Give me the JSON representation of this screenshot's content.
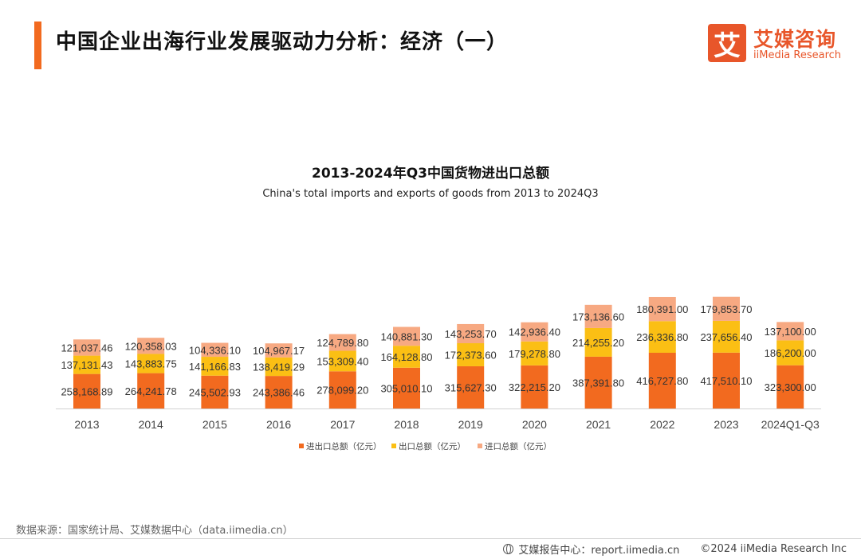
{
  "header": {
    "title": "中国企业出海行业发展驱动力分析：经济（一）"
  },
  "logo": {
    "mark": "艾",
    "name_cn": "艾媒咨询",
    "name_en": "iiMedia Research"
  },
  "chart_data": {
    "type": "bar",
    "stacked": true,
    "title": "2013-2024年Q3中国货物进出口总额",
    "subtitle": "China's total imports and exports of goods from 2013 to 2024Q3",
    "categories": [
      "2013",
      "2014",
      "2015",
      "2016",
      "2017",
      "2018",
      "2019",
      "2020",
      "2021",
      "2022",
      "2023",
      "2024Q1-Q3"
    ],
    "series": [
      {
        "name": "进出口总额（亿元）",
        "color": "#f26a1f",
        "values": [
          258168.89,
          264241.78,
          245502.93,
          243386.46,
          278099.2,
          305010.1,
          315627.3,
          322215.2,
          387391.8,
          416727.8,
          417510.1,
          323300.0
        ],
        "labels": [
          "258,168.89",
          "264,241.78",
          "245,502.93",
          "243,386.46",
          "278,099.20",
          "305,010.10",
          "315,627.30",
          "322,215.20",
          "387,391.80",
          "416,727.80",
          "417,510.10",
          "323,300.00"
        ]
      },
      {
        "name": "出口总额（亿元）",
        "color": "#fbbf14",
        "values": [
          137131.43,
          143883.75,
          141166.83,
          138419.29,
          153309.4,
          164128.8,
          172373.6,
          179278.8,
          214255.2,
          236336.8,
          237656.4,
          186200.0
        ],
        "labels": [
          "137,131.43",
          "143,883.75",
          "141,166.83",
          "138,419.29",
          "153,309.40",
          "164,128.80",
          "172,373.60",
          "179,278.80",
          "214,255.20",
          "236,336.80",
          "237,656.40",
          "186,200.00"
        ]
      },
      {
        "name": "进口总额（亿元）",
        "color": "#f7a982",
        "values": [
          121037.46,
          120358.03,
          104336.1,
          104967.17,
          124789.8,
          140881.3,
          143253.7,
          142936.4,
          173136.6,
          180391.0,
          179853.7,
          137100.0
        ],
        "labels": [
          "121,037.46",
          "120,358.03",
          "104,336.10",
          "104,967.17",
          "124,789.80",
          "140,881.30",
          "143,253.70",
          "142,936.40",
          "173,136.60",
          "180,391.00",
          "179,853.70",
          "137,100.00"
        ]
      }
    ],
    "legend_position": "bottom-center",
    "grid": false
  },
  "source": "数据来源：国家统计局、艾媒数据中心（data.iimedia.cn）",
  "footer": {
    "report_center": "艾媒报告中心：report.iimedia.cn",
    "copyright": "©2024 iiMedia Research Inc"
  }
}
